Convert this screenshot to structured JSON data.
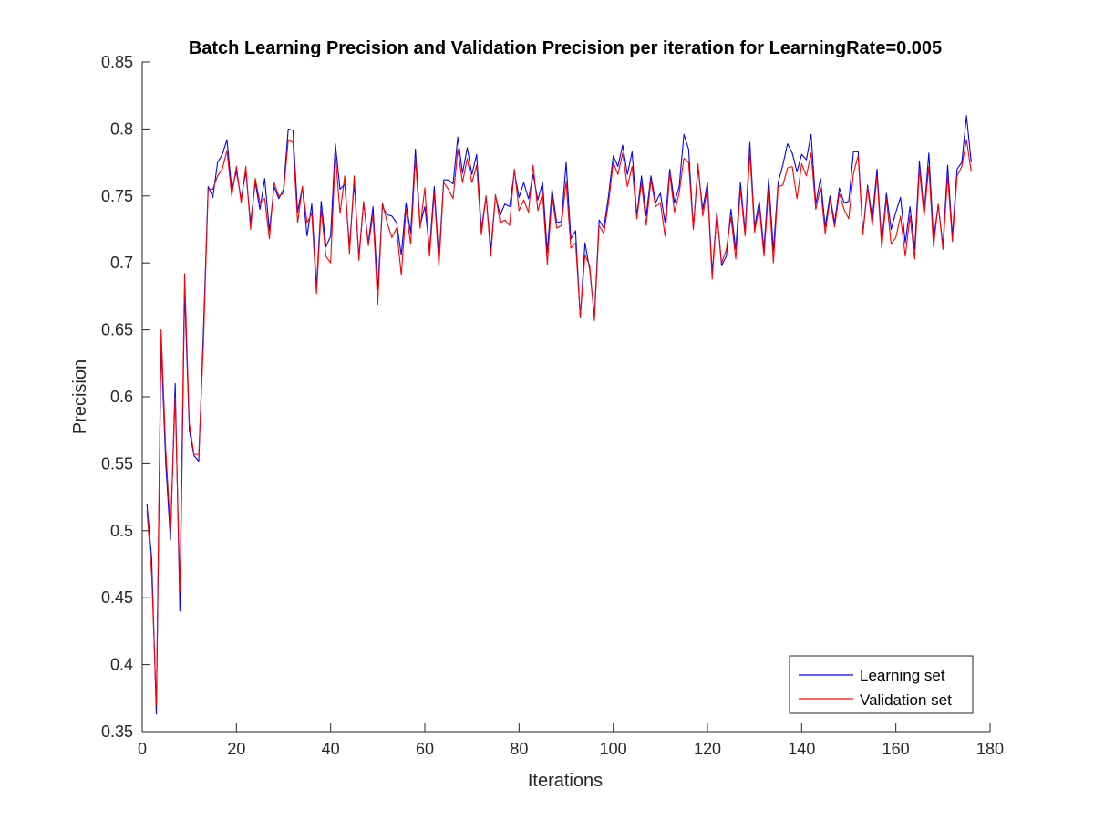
{
  "chart_data": {
    "type": "line",
    "title": "Batch Learning Precision and Validation Precision per iteration for LearningRate=0.005",
    "xlabel": "Iterations",
    "ylabel": "Precision",
    "xlim": [
      0,
      180
    ],
    "ylim": [
      0.35,
      0.85
    ],
    "xticks": [
      "0",
      "20",
      "40",
      "60",
      "80",
      "100",
      "120",
      "140",
      "160",
      "180"
    ],
    "yticks": [
      "0.35",
      "0.4",
      "0.45",
      "0.5",
      "0.55",
      "0.6",
      "0.65",
      "0.7",
      "0.75",
      "0.8",
      "0.85"
    ],
    "grid": false,
    "legend_position": "bottom-right",
    "x": [
      1,
      2,
      3,
      4,
      5,
      6,
      7,
      8,
      9,
      10,
      11,
      12,
      13,
      14,
      15,
      16,
      17,
      18,
      19,
      20,
      21,
      22,
      23,
      24,
      25,
      26,
      27,
      28,
      29,
      30,
      31,
      32,
      33,
      34,
      35,
      36,
      37,
      38,
      39,
      40,
      41,
      42,
      43,
      44,
      45,
      46,
      47,
      48,
      49,
      50,
      51,
      52,
      53,
      54,
      55,
      56,
      57,
      58,
      59,
      60,
      61,
      62,
      63,
      64,
      65,
      66,
      67,
      68,
      69,
      70,
      71,
      72,
      73,
      74,
      75,
      76,
      77,
      78,
      79,
      80,
      81,
      82,
      83,
      84,
      85,
      86,
      87,
      88,
      89,
      90,
      91,
      92,
      93,
      94,
      95,
      96,
      97,
      98,
      99,
      100,
      101,
      102,
      103,
      104,
      105,
      106,
      107,
      108,
      109,
      110,
      111,
      112,
      113,
      114,
      115,
      116,
      117,
      118,
      119,
      120,
      121,
      122,
      123,
      124,
      125,
      126,
      127,
      128,
      129,
      130,
      131,
      132,
      133,
      134,
      135,
      136,
      137,
      138,
      139,
      140,
      141,
      142,
      143,
      144,
      145,
      146,
      147,
      148,
      149,
      150,
      151,
      152,
      153,
      154,
      155,
      156,
      157,
      158,
      159,
      160,
      161,
      162,
      163,
      164,
      165,
      166,
      167,
      168,
      169,
      170,
      171,
      172,
      173,
      174,
      175,
      176
    ],
    "series": [
      {
        "name": "Learning set",
        "color": "#0000ff",
        "values": [
          0.52,
          0.48,
          0.363,
          0.64,
          0.55,
          0.493,
          0.61,
          0.44,
          0.68,
          0.575,
          0.556,
          0.552,
          0.65,
          0.757,
          0.749,
          0.775,
          0.781,
          0.792,
          0.755,
          0.768,
          0.748,
          0.768,
          0.73,
          0.76,
          0.74,
          0.763,
          0.724,
          0.757,
          0.748,
          0.755,
          0.8,
          0.799,
          0.738,
          0.757,
          0.72,
          0.744,
          0.682,
          0.746,
          0.712,
          0.72,
          0.789,
          0.755,
          0.759,
          0.712,
          0.76,
          0.705,
          0.745,
          0.715,
          0.742,
          0.68,
          0.742,
          0.736,
          0.735,
          0.73,
          0.706,
          0.745,
          0.722,
          0.785,
          0.728,
          0.742,
          0.71,
          0.757,
          0.702,
          0.762,
          0.762,
          0.759,
          0.794,
          0.767,
          0.786,
          0.766,
          0.781,
          0.725,
          0.75,
          0.71,
          0.75,
          0.736,
          0.744,
          0.742,
          0.768,
          0.749,
          0.76,
          0.748,
          0.766,
          0.747,
          0.76,
          0.708,
          0.755,
          0.73,
          0.731,
          0.775,
          0.718,
          0.724,
          0.659,
          0.715,
          0.695,
          0.66,
          0.732,
          0.726,
          0.75,
          0.78,
          0.772,
          0.788,
          0.766,
          0.783,
          0.735,
          0.765,
          0.735,
          0.765,
          0.745,
          0.752,
          0.73,
          0.77,
          0.745,
          0.757,
          0.796,
          0.785,
          0.726,
          0.771,
          0.74,
          0.76,
          0.692,
          0.738,
          0.698,
          0.705,
          0.74,
          0.71,
          0.76,
          0.723,
          0.79,
          0.727,
          0.746,
          0.71,
          0.763,
          0.709,
          0.76,
          0.773,
          0.789,
          0.782,
          0.768,
          0.781,
          0.777,
          0.796,
          0.744,
          0.763,
          0.727,
          0.75,
          0.73,
          0.756,
          0.745,
          0.746,
          0.783,
          0.783,
          0.722,
          0.758,
          0.733,
          0.77,
          0.715,
          0.752,
          0.725,
          0.738,
          0.749,
          0.715,
          0.742,
          0.71,
          0.776,
          0.737,
          0.782,
          0.718,
          0.743,
          0.713,
          0.773,
          0.72,
          0.77,
          0.775,
          0.81,
          0.775
        ]
      },
      {
        "name": "Validation set",
        "color": "#ff0000",
        "values": [
          0.515,
          0.468,
          0.37,
          0.65,
          0.56,
          0.5,
          0.6,
          0.455,
          0.692,
          0.58,
          0.557,
          0.557,
          0.64,
          0.755,
          0.755,
          0.765,
          0.77,
          0.784,
          0.75,
          0.772,
          0.745,
          0.772,
          0.725,
          0.763,
          0.745,
          0.748,
          0.718,
          0.76,
          0.75,
          0.752,
          0.792,
          0.79,
          0.73,
          0.757,
          0.73,
          0.737,
          0.677,
          0.74,
          0.705,
          0.7,
          0.782,
          0.737,
          0.765,
          0.707,
          0.765,
          0.702,
          0.746,
          0.713,
          0.736,
          0.669,
          0.745,
          0.73,
          0.719,
          0.726,
          0.691,
          0.74,
          0.714,
          0.778,
          0.726,
          0.756,
          0.705,
          0.752,
          0.697,
          0.76,
          0.755,
          0.748,
          0.785,
          0.76,
          0.778,
          0.76,
          0.773,
          0.721,
          0.75,
          0.705,
          0.751,
          0.73,
          0.732,
          0.728,
          0.77,
          0.739,
          0.747,
          0.738,
          0.773,
          0.739,
          0.752,
          0.699,
          0.75,
          0.726,
          0.728,
          0.761,
          0.711,
          0.715,
          0.66,
          0.706,
          0.698,
          0.657,
          0.728,
          0.722,
          0.745,
          0.775,
          0.766,
          0.782,
          0.757,
          0.772,
          0.733,
          0.76,
          0.728,
          0.762,
          0.742,
          0.745,
          0.72,
          0.767,
          0.738,
          0.752,
          0.778,
          0.775,
          0.725,
          0.774,
          0.735,
          0.756,
          0.688,
          0.737,
          0.7,
          0.71,
          0.734,
          0.703,
          0.755,
          0.72,
          0.783,
          0.723,
          0.742,
          0.705,
          0.756,
          0.7,
          0.757,
          0.758,
          0.771,
          0.772,
          0.748,
          0.774,
          0.765,
          0.782,
          0.74,
          0.756,
          0.722,
          0.747,
          0.727,
          0.752,
          0.74,
          0.733,
          0.767,
          0.78,
          0.721,
          0.756,
          0.728,
          0.765,
          0.711,
          0.748,
          0.714,
          0.719,
          0.735,
          0.705,
          0.735,
          0.703,
          0.77,
          0.735,
          0.772,
          0.712,
          0.744,
          0.71,
          0.765,
          0.716,
          0.765,
          0.772,
          0.792,
          0.768
        ]
      }
    ]
  }
}
